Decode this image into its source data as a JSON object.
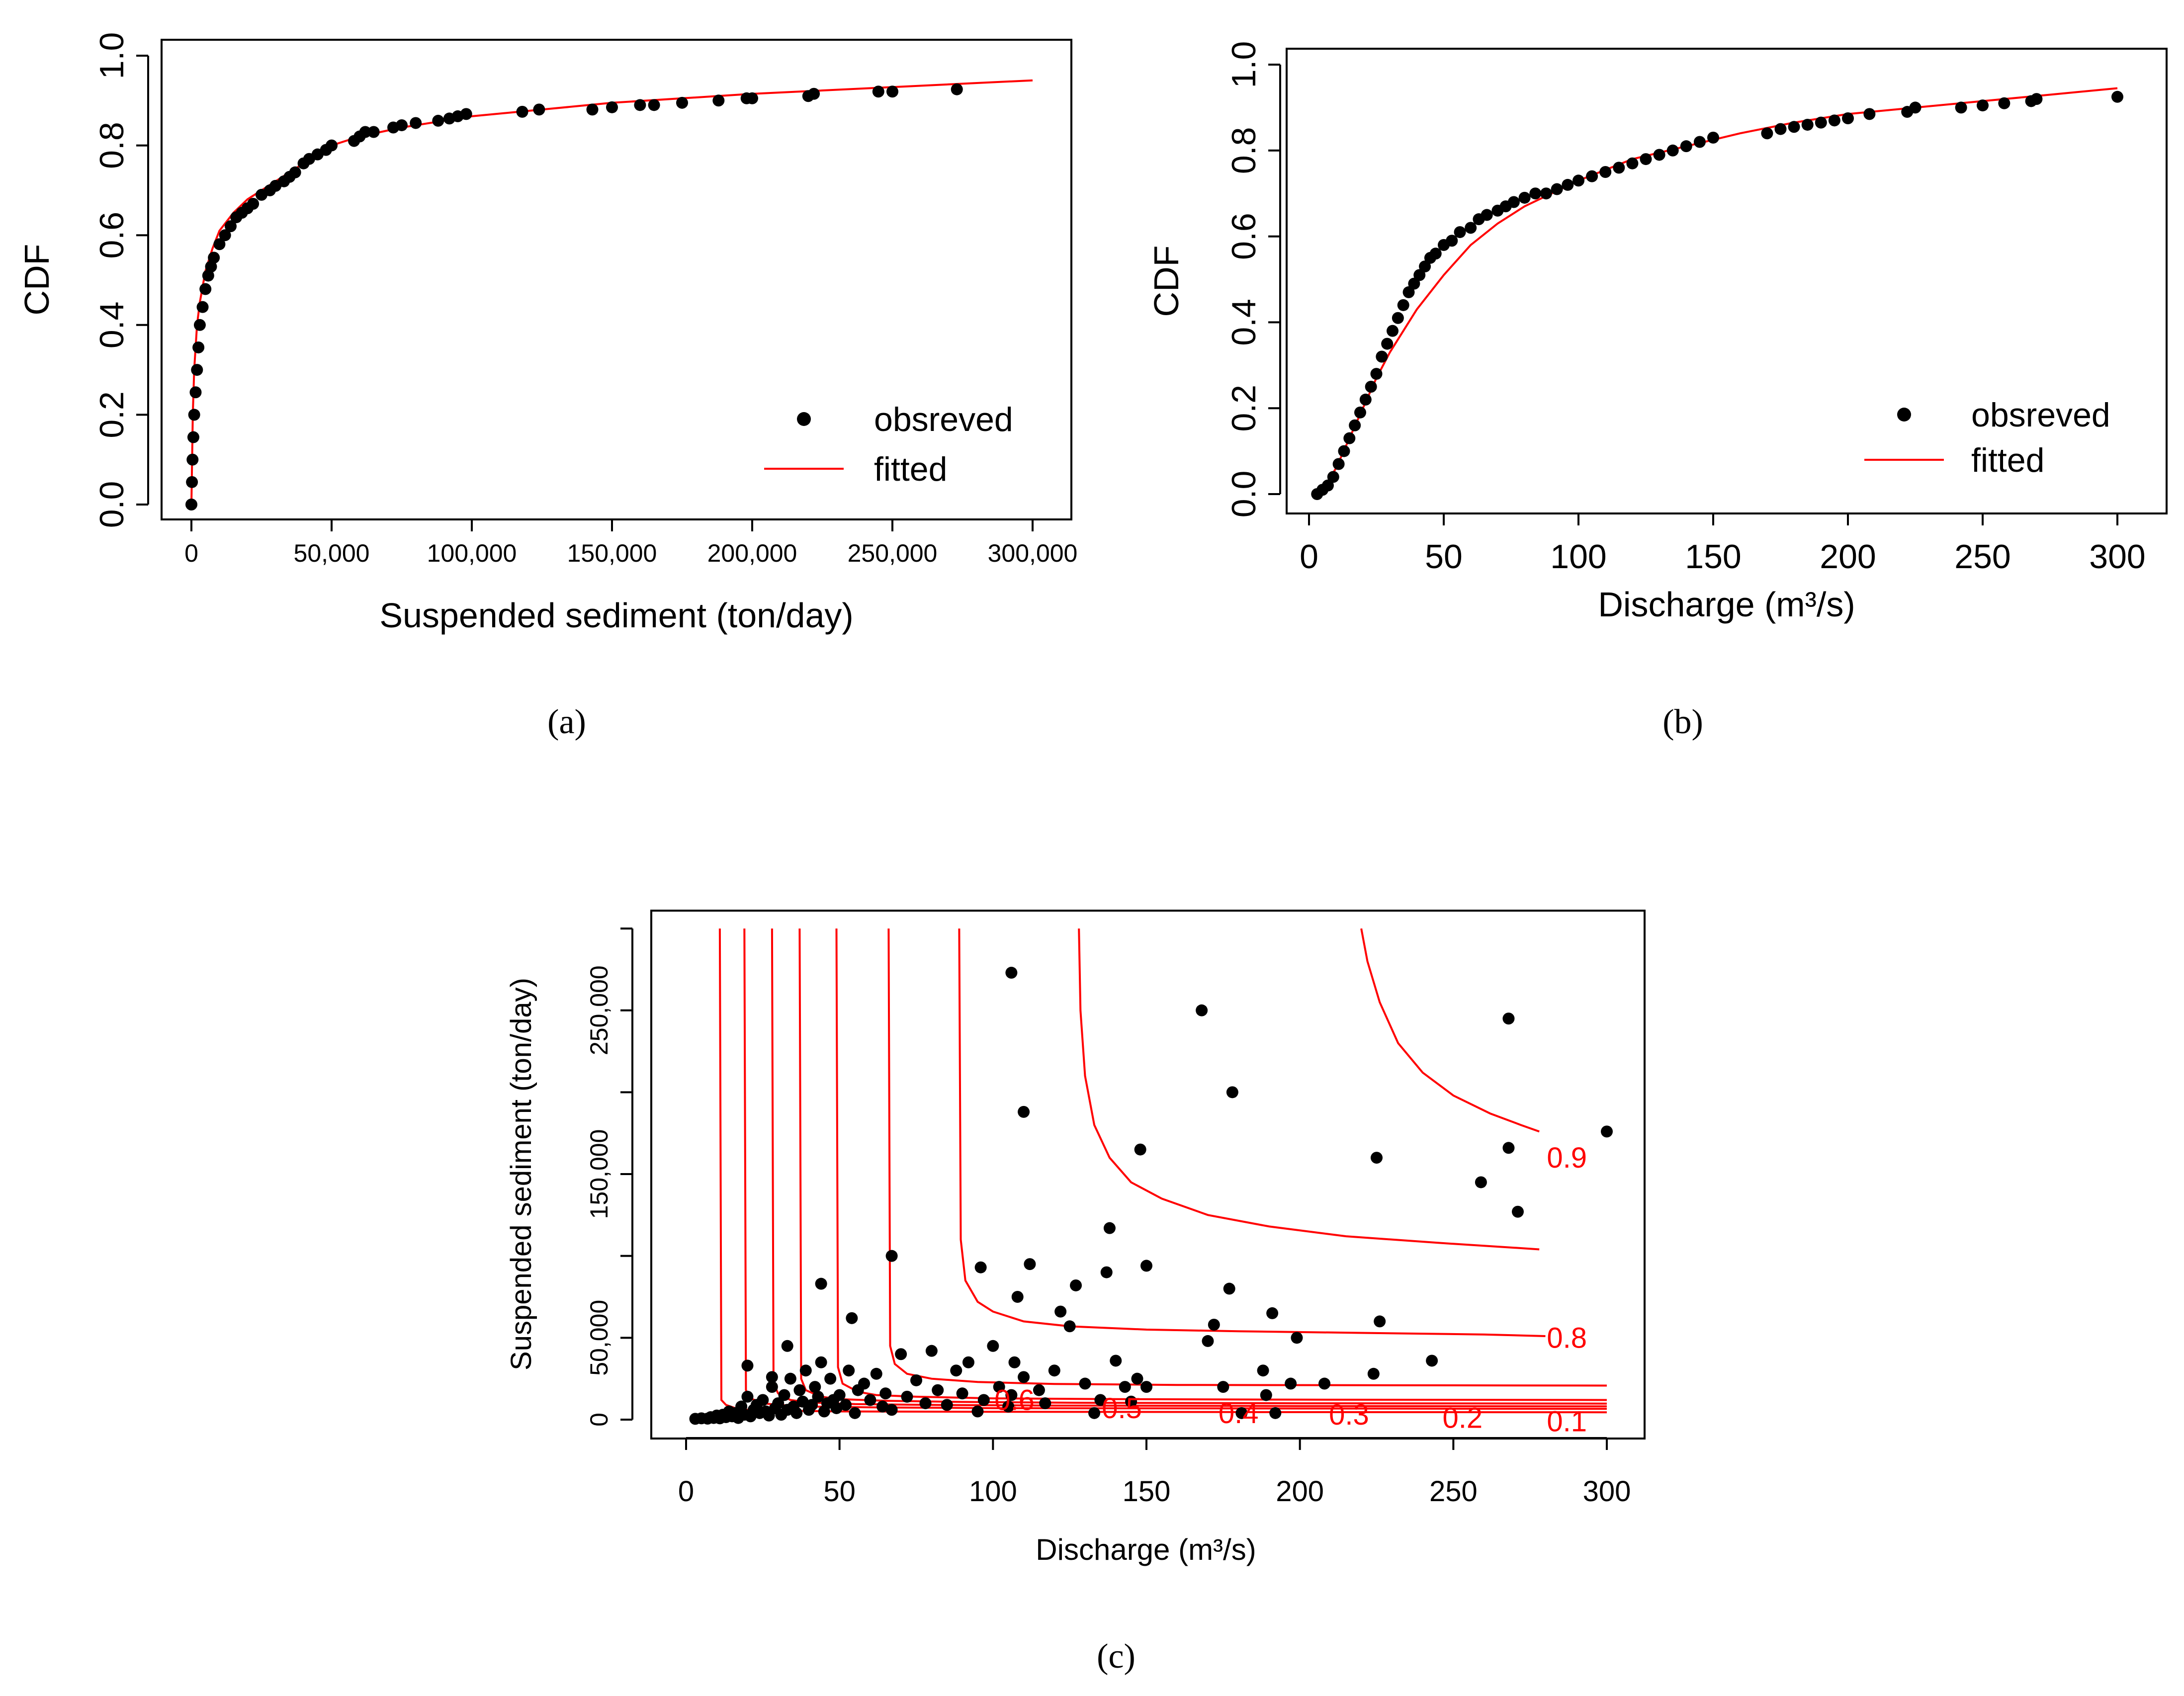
{
  "colors": {
    "fitted": "#ff0000",
    "observed": "#000000",
    "background": "#ffffff"
  },
  "chart_data": [
    {
      "id": "a",
      "type": "scatter",
      "caption": "(a)",
      "xlabel": "Suspended sediment (ton/day)",
      "ylabel": "CDF",
      "xlim": [
        0,
        300000
      ],
      "ylim": [
        0,
        1
      ],
      "xticks": [
        0,
        50000,
        100000,
        150000,
        200000,
        250000,
        300000
      ],
      "xtick_labels": [
        "0",
        "50,000",
        "100,000",
        "150,000",
        "200,000",
        "250,000",
        "300,000"
      ],
      "yticks": [
        0,
        0.2,
        0.4,
        0.6,
        0.8,
        1.0
      ],
      "ytick_labels": [
        "0.0",
        "0.2",
        "0.4",
        "0.6",
        "0.8",
        "1.0"
      ],
      "legend": {
        "position": "bottom-right",
        "entries": [
          "obsreved",
          "fitted"
        ]
      },
      "series": [
        {
          "name": "obsreved",
          "kind": "points",
          "x": [
            0,
            200,
            400,
            700,
            1000,
            1500,
            2000,
            2500,
            3000,
            4000,
            5000,
            6000,
            7000,
            8000,
            10000,
            12000,
            14000,
            16000,
            18000,
            20000,
            22000,
            25000,
            28000,
            30000,
            33000,
            35000,
            37000,
            40000,
            42000,
            45000,
            48000,
            50000,
            58000,
            60000,
            62000,
            65000,
            72000,
            75000,
            80000,
            88000,
            92000,
            95000,
            98000,
            118000,
            124000,
            143000,
            150000,
            160000,
            165000,
            175000,
            188000,
            198000,
            200000,
            220000,
            222000,
            245000,
            250000,
            273000
          ],
          "y": [
            0.0,
            0.05,
            0.1,
            0.15,
            0.2,
            0.25,
            0.3,
            0.35,
            0.4,
            0.44,
            0.48,
            0.51,
            0.53,
            0.55,
            0.58,
            0.6,
            0.62,
            0.64,
            0.65,
            0.66,
            0.67,
            0.69,
            0.7,
            0.71,
            0.72,
            0.73,
            0.74,
            0.76,
            0.77,
            0.78,
            0.79,
            0.8,
            0.81,
            0.82,
            0.83,
            0.83,
            0.84,
            0.845,
            0.85,
            0.855,
            0.86,
            0.865,
            0.87,
            0.875,
            0.88,
            0.88,
            0.885,
            0.89,
            0.89,
            0.895,
            0.9,
            0.905,
            0.905,
            0.91,
            0.915,
            0.92,
            0.92,
            0.925
          ]
        },
        {
          "name": "fitted",
          "kind": "line",
          "x": [
            0,
            500,
            1000,
            2000,
            3000,
            5000,
            7500,
            10000,
            15000,
            20000,
            25000,
            30000,
            40000,
            50000,
            60000,
            75000,
            100000,
            125000,
            150000,
            175000,
            200000,
            250000,
            300000
          ],
          "y": [
            0.0,
            0.2,
            0.3,
            0.4,
            0.45,
            0.52,
            0.57,
            0.61,
            0.65,
            0.68,
            0.7,
            0.72,
            0.76,
            0.8,
            0.82,
            0.84,
            0.865,
            0.88,
            0.895,
            0.905,
            0.915,
            0.93,
            0.945
          ]
        }
      ]
    },
    {
      "id": "b",
      "type": "scatter",
      "caption": "(b)",
      "xlabel": "Discharge (m³/s)",
      "ylabel": "CDF",
      "xlim": [
        0,
        300
      ],
      "ylim": [
        0,
        1
      ],
      "xticks": [
        0,
        50,
        100,
        150,
        200,
        250,
        300
      ],
      "xtick_labels": [
        "0",
        "50",
        "100",
        "150",
        "200",
        "250",
        "300"
      ],
      "yticks": [
        0,
        0.2,
        0.4,
        0.6,
        0.8,
        1.0
      ],
      "ytick_labels": [
        "0.0",
        "0.2",
        "0.4",
        "0.6",
        "0.8",
        "1.0"
      ],
      "legend": {
        "position": "bottom-right",
        "entries": [
          "obsreved",
          "fitted"
        ]
      },
      "series": [
        {
          "name": "obsreved",
          "kind": "points",
          "x": [
            3,
            5,
            7,
            9,
            11,
            13,
            15,
            17,
            19,
            21,
            23,
            25,
            27,
            29,
            31,
            33,
            35,
            37,
            39,
            41,
            43,
            45,
            47,
            50,
            53,
            56,
            60,
            63,
            66,
            70,
            73,
            76,
            80,
            84,
            88,
            92,
            96,
            100,
            105,
            110,
            115,
            120,
            125,
            130,
            135,
            140,
            145,
            150,
            170,
            175,
            180,
            185,
            190,
            195,
            200,
            208,
            222,
            225,
            242,
            250,
            258,
            268,
            270,
            300
          ],
          "y": [
            0.0,
            0.01,
            0.02,
            0.04,
            0.07,
            0.1,
            0.13,
            0.16,
            0.19,
            0.22,
            0.25,
            0.28,
            0.32,
            0.35,
            0.38,
            0.41,
            0.44,
            0.47,
            0.49,
            0.51,
            0.53,
            0.55,
            0.56,
            0.58,
            0.59,
            0.61,
            0.62,
            0.64,
            0.65,
            0.66,
            0.67,
            0.68,
            0.69,
            0.7,
            0.7,
            0.71,
            0.72,
            0.73,
            0.74,
            0.75,
            0.76,
            0.77,
            0.78,
            0.79,
            0.8,
            0.81,
            0.82,
            0.83,
            0.84,
            0.85,
            0.855,
            0.86,
            0.865,
            0.87,
            0.875,
            0.885,
            0.89,
            0.9,
            0.9,
            0.905,
            0.91,
            0.915,
            0.92,
            0.925
          ]
        },
        {
          "name": "fitted",
          "kind": "line",
          "x": [
            2,
            5,
            10,
            15,
            20,
            25,
            30,
            40,
            50,
            60,
            70,
            80,
            90,
            100,
            120,
            140,
            160,
            180,
            200,
            225,
            250,
            275,
            300
          ],
          "y": [
            0.0,
            0.01,
            0.06,
            0.13,
            0.2,
            0.27,
            0.33,
            0.43,
            0.51,
            0.58,
            0.63,
            0.67,
            0.7,
            0.73,
            0.78,
            0.81,
            0.84,
            0.865,
            0.885,
            0.9,
            0.915,
            0.93,
            0.945
          ]
        }
      ]
    },
    {
      "id": "c",
      "type": "scatter",
      "caption": "(c)",
      "xlabel": "Discharge (m³/s)",
      "ylabel": "Suspended sediment (ton/day)",
      "xlim": [
        0,
        300
      ],
      "ylim": [
        0,
        300000
      ],
      "xticks": [
        0,
        50,
        100,
        150,
        200,
        250,
        300
      ],
      "xtick_labels": [
        "0",
        "50",
        "100",
        "150",
        "200",
        "250",
        "300"
      ],
      "yticks": [
        0,
        50000,
        150000,
        250000
      ],
      "ytick_labels": [
        "0",
        "50,000",
        "150,000",
        "250,000"
      ],
      "minor_yticks": [
        100000,
        200000,
        300000
      ],
      "points": {
        "name": "observed",
        "x": [
          3,
          5,
          7,
          8,
          9,
          10,
          11,
          12,
          13,
          14,
          15,
          16,
          17,
          18,
          19,
          20,
          21,
          22,
          23,
          24,
          25,
          26,
          27,
          28,
          29,
          30,
          31,
          32,
          33,
          34,
          35,
          36,
          37,
          38,
          39,
          40,
          41,
          42,
          43,
          44,
          45,
          46,
          47,
          48,
          49,
          50,
          52,
          53,
          55,
          56,
          58,
          60,
          62,
          64,
          65,
          67,
          70,
          72,
          75,
          78,
          80,
          82,
          85,
          88,
          90,
          92,
          95,
          97,
          100,
          102,
          105,
          106,
          107,
          108,
          110,
          112,
          115,
          117,
          120,
          122,
          125,
          127,
          130,
          133,
          135,
          137,
          140,
          143,
          145,
          147,
          148,
          150,
          170,
          172,
          175,
          177,
          181,
          188,
          189,
          191,
          192,
          197,
          199,
          208,
          225,
          226,
          243,
          259,
          268,
          271,
          300,
          20,
          28,
          33,
          44,
          54,
          67,
          96,
          110,
          138,
          150,
          168,
          178,
          268,
          224,
          106
        ],
        "y": [
          500,
          800,
          600,
          1500,
          1000,
          2500,
          800,
          3000,
          1500,
          5000,
          2000,
          4000,
          1000,
          8000,
          3000,
          14000,
          2000,
          6000,
          9000,
          4000,
          12000,
          5000,
          2500,
          20000,
          7000,
          10000,
          3000,
          15000,
          6000,
          25000,
          8000,
          4000,
          18000,
          11000,
          30000,
          6000,
          9000,
          20000,
          14000,
          35000,
          5000,
          10000,
          25000,
          12000,
          7000,
          15000,
          9000,
          30000,
          4000,
          18000,
          22000,
          12000,
          28000,
          8000,
          16000,
          6000,
          40000,
          14000,
          24000,
          10000,
          42000,
          18000,
          9000,
          30000,
          16000,
          35000,
          5000,
          12000,
          45000,
          20000,
          8000,
          15000,
          35000,
          75000,
          26000,
          95000,
          18000,
          10000,
          30000,
          66000,
          57000,
          82000,
          22000,
          4000,
          12000,
          90000,
          36000,
          20000,
          11000,
          25000,
          165000,
          20000,
          48000,
          58000,
          20000,
          80000,
          4000,
          30000,
          15000,
          65000,
          4000,
          22000,
          50000,
          22000,
          160000,
          60000,
          36000,
          145000,
          245000,
          127000,
          176000,
          33000,
          26000,
          45000,
          83000,
          62000,
          100000,
          93000,
          188000,
          117000,
          94000,
          250000,
          200000,
          166000,
          28000,
          273000
        ]
      },
      "contours": [
        {
          "level": "0.1",
          "x": [
            11,
            11.5,
            13,
            16,
            20,
            30,
            50,
            100,
            200,
            300
          ],
          "y": [
            300000,
            12000,
            9000,
            7000,
            6000,
            5500,
            5000,
            4800,
            4600,
            4500
          ]
        },
        {
          "level": "0.2",
          "x": [
            19,
            19.5,
            21,
            25,
            30,
            40,
            60,
            100,
            200,
            300
          ],
          "y": [
            300000,
            18000,
            13000,
            10000,
            9000,
            8000,
            7500,
            7000,
            6800,
            6600
          ]
        },
        {
          "level": "0.3",
          "x": [
            28,
            28.5,
            30,
            34,
            40,
            55,
            80,
            120,
            200,
            300
          ],
          "y": [
            300000,
            22000,
            16000,
            12000,
            10500,
            9500,
            9000,
            8600,
            8300,
            8100
          ]
        },
        {
          "level": "0.4",
          "x": [
            37,
            37.5,
            39,
            44,
            50,
            65,
            90,
            130,
            200,
            300
          ],
          "y": [
            300000,
            25000,
            18000,
            14000,
            12500,
            11500,
            10800,
            10300,
            10000,
            9800
          ]
        },
        {
          "level": "0.5",
          "x": [
            49,
            49.5,
            51,
            56,
            62,
            75,
            100,
            140,
            200,
            300
          ],
          "y": [
            300000,
            32000,
            22000,
            17000,
            15000,
            14000,
            13000,
            12500,
            12200,
            12000
          ]
        },
        {
          "level": "0.6",
          "x": [
            66,
            66.5,
            68,
            72,
            80,
            95,
            120,
            160,
            220,
            300
          ],
          "y": [
            300000,
            45000,
            34000,
            28000,
            25000,
            23000,
            21800,
            21200,
            21000,
            20800
          ]
        },
        {
          "level": "0.8",
          "x": [
            89,
            89.5,
            91,
            95,
            100,
            110,
            125,
            150,
            180,
            220,
            260,
            280
          ],
          "y": [
            300000,
            110000,
            85000,
            72000,
            66000,
            60000,
            57000,
            55000,
            54000,
            53000,
            52000,
            51000
          ]
        },
        {
          "level": "0.9",
          "x": [
            128,
            128.5,
            130,
            133,
            138,
            145,
            155,
            170,
            190,
            215,
            245,
            270,
            278
          ],
          "y": [
            300000,
            250000,
            210000,
            180000,
            160000,
            145000,
            135000,
            125000,
            118000,
            112000,
            108000,
            105000,
            104000
          ]
        },
        {
          "level": "0.95",
          "x": [
            220,
            222,
            226,
            232,
            240,
            250,
            262,
            272,
            278
          ],
          "y": [
            300000,
            280000,
            255000,
            230000,
            212000,
            198000,
            187000,
            180000,
            176000
          ]
        }
      ],
      "contour_labels": [
        {
          "text": "0.6",
          "x": 107,
          "y": 12000
        },
        {
          "text": "0.5",
          "x": 142,
          "y": 7000
        },
        {
          "text": "0.4",
          "x": 180,
          "y": 4000
        },
        {
          "text": "0.3",
          "x": 216,
          "y": 3000
        },
        {
          "text": "0.2",
          "x": 253,
          "y": 1000
        },
        {
          "text": "0.1",
          "x": 287,
          "y": -1000
        },
        {
          "text": "0.8",
          "x": 287,
          "y": 50000
        },
        {
          "text": "0.9",
          "x": 287,
          "y": 160000
        }
      ]
    }
  ]
}
